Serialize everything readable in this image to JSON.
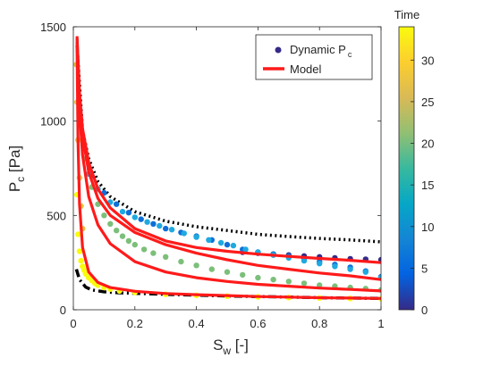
{
  "chart_data": {
    "type": "scatter",
    "xlabel_main": "S",
    "xlabel_sub": "w",
    "xlabel_unit": " [-]",
    "ylabel_main": "P",
    "ylabel_sub": "c",
    "ylabel_unit": " [Pa]",
    "xlim": [
      0,
      1
    ],
    "ylim": [
      0,
      1500
    ],
    "xticks": [
      "0",
      "0.2",
      "0.4",
      "0.6",
      "0.8",
      "1"
    ],
    "yticks": [
      "0",
      "500",
      "1000",
      "1500"
    ],
    "colorbar": {
      "label": "Time",
      "range": [
        0,
        34
      ],
      "ticks": [
        "0",
        "5",
        "10",
        "15",
        "20",
        "25",
        "30"
      ]
    },
    "legend": {
      "placement": "top-right",
      "dynamic_main": "Dynamic P",
      "dynamic_sub": "c",
      "model": "Model"
    },
    "colors": {
      "model": "#ff1a1a",
      "bound": "#000000"
    },
    "series": [
      {
        "time": 0,
        "color": "#352a87",
        "points": [
          [
            0.55,
            305
          ],
          [
            0.6,
            300
          ],
          [
            0.65,
            295
          ],
          [
            0.7,
            290
          ],
          [
            0.75,
            285
          ],
          [
            0.8,
            280
          ],
          [
            0.85,
            275
          ],
          [
            0.9,
            270
          ],
          [
            0.95,
            268
          ],
          [
            1.0,
            265
          ]
        ],
        "model": [
          [
            0.012,
            1450
          ],
          [
            0.02,
            1150
          ],
          [
            0.03,
            960
          ],
          [
            0.05,
            780
          ],
          [
            0.08,
            640
          ],
          [
            0.12,
            540
          ],
          [
            0.2,
            430
          ],
          [
            0.3,
            365
          ],
          [
            0.4,
            330
          ],
          [
            0.5,
            310
          ],
          [
            0.6,
            295
          ],
          [
            0.7,
            283
          ],
          [
            0.8,
            272
          ],
          [
            0.9,
            262
          ],
          [
            1.0,
            250
          ]
        ]
      },
      {
        "time": 6,
        "color": "#0f6fd8",
        "points": [
          [
            0.06,
            710
          ],
          [
            0.1,
            620
          ],
          [
            0.14,
            560
          ],
          [
            0.18,
            515
          ],
          [
            0.22,
            480
          ],
          [
            0.26,
            455
          ],
          [
            0.3,
            430
          ],
          [
            0.35,
            410
          ],
          [
            0.4,
            390
          ],
          [
            0.45,
            370
          ],
          [
            0.5,
            345
          ],
          [
            0.55,
            320
          ],
          [
            0.6,
            305
          ],
          [
            0.65,
            295
          ],
          [
            0.7,
            285
          ],
          [
            0.75,
            270
          ],
          [
            0.8,
            255
          ],
          [
            0.85,
            240
          ],
          [
            0.9,
            225
          ],
          [
            0.95,
            205
          ],
          [
            1.0,
            175
          ]
        ]
      },
      {
        "time": 10,
        "color": "#1fa9e0",
        "points": [
          [
            0.05,
            720
          ],
          [
            0.08,
            640
          ],
          [
            0.12,
            570
          ],
          [
            0.16,
            520
          ],
          [
            0.2,
            490
          ],
          [
            0.24,
            465
          ],
          [
            0.28,
            445
          ],
          [
            0.32,
            425
          ],
          [
            0.36,
            405
          ],
          [
            0.4,
            385
          ],
          [
            0.44,
            370
          ],
          [
            0.48,
            355
          ],
          [
            0.52,
            340
          ],
          [
            0.56,
            320
          ],
          [
            0.6,
            305
          ],
          [
            0.65,
            290
          ],
          [
            0.7,
            275
          ],
          [
            0.75,
            260
          ],
          [
            0.8,
            245
          ],
          [
            0.85,
            230
          ],
          [
            0.9,
            215
          ],
          [
            0.95,
            200
          ],
          [
            1.0,
            170
          ]
        ],
        "model": [
          [
            0.012,
            1440
          ],
          [
            0.02,
            1120
          ],
          [
            0.03,
            920
          ],
          [
            0.05,
            730
          ],
          [
            0.08,
            590
          ],
          [
            0.12,
            500
          ],
          [
            0.2,
            410
          ],
          [
            0.3,
            345
          ],
          [
            0.4,
            300
          ],
          [
            0.5,
            265
          ],
          [
            0.6,
            235
          ],
          [
            0.7,
            215
          ],
          [
            0.8,
            195
          ],
          [
            0.9,
            180
          ],
          [
            1.0,
            160
          ]
        ]
      },
      {
        "time": 20,
        "color": "#7cbf7a",
        "points": [
          [
            0.04,
            800
          ],
          [
            0.06,
            650
          ],
          [
            0.08,
            560
          ],
          [
            0.1,
            500
          ],
          [
            0.12,
            455
          ],
          [
            0.14,
            420
          ],
          [
            0.16,
            390
          ],
          [
            0.18,
            365
          ],
          [
            0.2,
            345
          ],
          [
            0.23,
            320
          ],
          [
            0.26,
            300
          ],
          [
            0.3,
            280
          ],
          [
            0.35,
            255
          ],
          [
            0.4,
            235
          ],
          [
            0.45,
            215
          ],
          [
            0.5,
            200
          ],
          [
            0.55,
            185
          ],
          [
            0.6,
            170
          ],
          [
            0.65,
            160
          ],
          [
            0.7,
            150
          ],
          [
            0.75,
            140
          ],
          [
            0.8,
            130
          ],
          [
            0.85,
            125
          ],
          [
            0.9,
            118
          ],
          [
            0.95,
            112
          ],
          [
            1.0,
            105
          ]
        ],
        "model": [
          [
            0.012,
            1420
          ],
          [
            0.02,
            1050
          ],
          [
            0.03,
            820
          ],
          [
            0.05,
            600
          ],
          [
            0.08,
            450
          ],
          [
            0.12,
            350
          ],
          [
            0.2,
            255
          ],
          [
            0.3,
            200
          ],
          [
            0.4,
            170
          ],
          [
            0.5,
            150
          ],
          [
            0.6,
            135
          ],
          [
            0.7,
            125
          ],
          [
            0.8,
            115
          ],
          [
            0.9,
            108
          ],
          [
            1.0,
            100
          ]
        ]
      },
      {
        "time": 28,
        "color": "#e5c140",
        "points": [
          [
            0.01,
            1300
          ],
          [
            0.012,
            1100
          ],
          [
            0.015,
            900
          ],
          [
            0.02,
            700
          ],
          [
            0.025,
            550
          ],
          [
            0.03,
            430
          ]
        ]
      },
      {
        "time": 33,
        "color": "#f9fb0e",
        "points": [
          [
            0.012,
            610
          ],
          [
            0.015,
            400
          ],
          [
            0.02,
            310
          ],
          [
            0.025,
            260
          ],
          [
            0.03,
            230
          ],
          [
            0.035,
            210
          ],
          [
            0.04,
            190
          ],
          [
            0.05,
            170
          ],
          [
            0.06,
            155
          ],
          [
            0.07,
            140
          ],
          [
            0.08,
            130
          ],
          [
            0.1,
            118
          ],
          [
            0.12,
            110
          ],
          [
            0.15,
            100
          ],
          [
            0.2,
            92
          ],
          [
            0.3,
            82
          ],
          [
            0.4,
            76
          ],
          [
            0.5,
            72
          ],
          [
            0.6,
            68
          ],
          [
            0.7,
            65
          ],
          [
            0.8,
            62
          ],
          [
            0.9,
            60
          ],
          [
            1.0,
            58
          ]
        ],
        "model": [
          [
            0.012,
            1400
          ],
          [
            0.015,
            900
          ],
          [
            0.02,
            560
          ],
          [
            0.03,
            330
          ],
          [
            0.05,
            200
          ],
          [
            0.08,
            145
          ],
          [
            0.12,
            118
          ],
          [
            0.2,
            98
          ],
          [
            0.3,
            86
          ],
          [
            0.4,
            80
          ],
          [
            0.5,
            75
          ],
          [
            0.6,
            70
          ],
          [
            0.7,
            67
          ],
          [
            0.8,
            64
          ],
          [
            0.9,
            62
          ],
          [
            1.0,
            60
          ]
        ]
      }
    ],
    "upper_bound": [
      [
        0.012,
        1400
      ],
      [
        0.03,
        950
      ],
      [
        0.05,
        800
      ],
      [
        0.08,
        680
      ],
      [
        0.12,
        600
      ],
      [
        0.2,
        520
      ],
      [
        0.3,
        470
      ],
      [
        0.4,
        440
      ],
      [
        0.5,
        420
      ],
      [
        0.6,
        400
      ],
      [
        0.7,
        388
      ],
      [
        0.8,
        378
      ],
      [
        0.9,
        370
      ],
      [
        1.0,
        360
      ]
    ],
    "lower_bound": [
      [
        0.01,
        215
      ],
      [
        0.02,
        160
      ],
      [
        0.04,
        120
      ],
      [
        0.06,
        105
      ],
      [
        0.1,
        95
      ],
      [
        0.15,
        90
      ],
      [
        0.2,
        87
      ],
      [
        0.3,
        82
      ],
      [
        0.4,
        77
      ],
      [
        0.5,
        73
      ],
      [
        0.6,
        70
      ],
      [
        0.7,
        67
      ],
      [
        0.8,
        64
      ],
      [
        0.9,
        62
      ],
      [
        1.0,
        60
      ]
    ]
  }
}
